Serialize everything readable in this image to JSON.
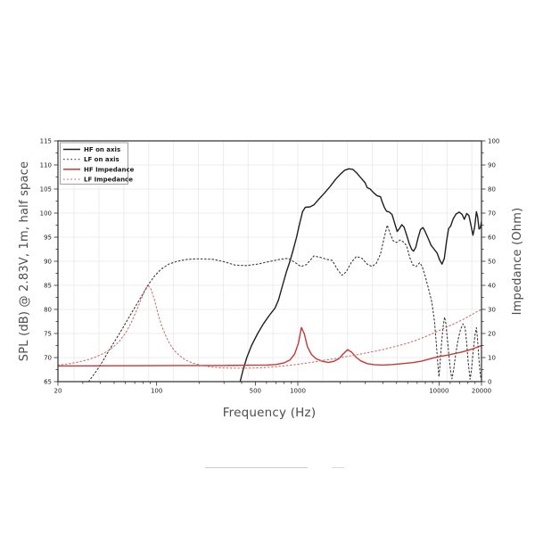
{
  "chart_data": {
    "type": "line",
    "title": "",
    "x_axis": {
      "label": "Frequency (Hz)",
      "scale": "log",
      "min": 20,
      "max": 20000,
      "major_ticks": [
        20,
        100,
        500,
        1000,
        10000,
        20000
      ],
      "major_tick_labels": [
        "20",
        "100",
        "500",
        "1000",
        "10000",
        "20000"
      ],
      "minor_ticks": [
        30,
        40,
        50,
        60,
        70,
        80,
        90,
        200,
        300,
        400,
        600,
        700,
        800,
        900,
        2000,
        3000,
        4000,
        5000,
        6000,
        7000,
        8000,
        9000,
        12000,
        14000,
        16000,
        18000
      ]
    },
    "y_left": {
      "label": "SPL (dB) @ 2.83V, 1m, half space",
      "min": 65,
      "max": 115,
      "major_step": 5,
      "minor_step": 2.5,
      "tick_labels": [
        "65",
        "70",
        "75",
        "80",
        "85",
        "90",
        "95",
        "100",
        "105",
        "110",
        "115"
      ]
    },
    "y_right": {
      "label": "Impedance (Ohm)",
      "min": 0,
      "max": 100,
      "major_step": 10,
      "minor_step": 5,
      "tick_labels": [
        "0",
        "10",
        "20",
        "30",
        "40",
        "50",
        "60",
        "70",
        "80",
        "90",
        "100"
      ]
    },
    "grid": {
      "color": "#ececec",
      "vertical_anchor": 1000,
      "vertical_ratio": 1.5,
      "horizontal_step": 5
    },
    "frame_color": "#2b2b2b",
    "legend": {
      "position": "top-left",
      "entries": [
        "HF on axis",
        "LF on axis",
        "HF Impedance",
        "LF Impedance"
      ]
    },
    "series": [
      {
        "id": "hf-on-axis",
        "name": "HF on axis",
        "axis": "left",
        "unit": "dB SPL",
        "style": "solid",
        "color": "#1f1f1f",
        "width": 1.4,
        "points": [
          [
            390,
            65
          ],
          [
            410,
            67.5
          ],
          [
            435,
            70
          ],
          [
            470,
            72.5
          ],
          [
            520,
            75
          ],
          [
            570,
            77
          ],
          [
            630,
            78.8
          ],
          [
            690,
            80.3
          ],
          [
            730,
            82
          ],
          [
            780,
            85
          ],
          [
            830,
            87.8
          ],
          [
            880,
            90
          ],
          [
            930,
            92.5
          ],
          [
            980,
            95
          ],
          [
            1030,
            97.8
          ],
          [
            1080,
            100.3
          ],
          [
            1130,
            101.2
          ],
          [
            1220,
            101.3
          ],
          [
            1300,
            101.7
          ],
          [
            1400,
            102.8
          ],
          [
            1550,
            104.2
          ],
          [
            1700,
            105.6
          ],
          [
            1850,
            107
          ],
          [
            2000,
            108.1
          ],
          [
            2150,
            108.9
          ],
          [
            2300,
            109.2
          ],
          [
            2450,
            109.1
          ],
          [
            2600,
            108.4
          ],
          [
            2800,
            107.3
          ],
          [
            3000,
            106.3
          ],
          [
            3100,
            105.3
          ],
          [
            3250,
            105
          ],
          [
            3450,
            104.2
          ],
          [
            3650,
            103.6
          ],
          [
            3850,
            103.4
          ],
          [
            3950,
            102.4
          ],
          [
            4100,
            101.2
          ],
          [
            4250,
            100.4
          ],
          [
            4450,
            100.2
          ],
          [
            4650,
            99.7
          ],
          [
            4850,
            97.9
          ],
          [
            5050,
            96.2
          ],
          [
            5250,
            96.8
          ],
          [
            5450,
            97.6
          ],
          [
            5650,
            97.1
          ],
          [
            5900,
            95.4
          ],
          [
            6150,
            93.7
          ],
          [
            6400,
            92.5
          ],
          [
            6600,
            92.1
          ],
          [
            6850,
            92.9
          ],
          [
            7100,
            94.8
          ],
          [
            7400,
            96.6
          ],
          [
            7700,
            97
          ],
          [
            8000,
            96.1
          ],
          [
            8400,
            94.7
          ],
          [
            8800,
            93.3
          ],
          [
            9300,
            92.4
          ],
          [
            9700,
            91.7
          ],
          [
            10100,
            90.3
          ],
          [
            10500,
            89.4
          ],
          [
            10900,
            90.6
          ],
          [
            11300,
            94
          ],
          [
            11700,
            96.8
          ],
          [
            12100,
            97.3
          ],
          [
            12600,
            98.8
          ],
          [
            13200,
            99.8
          ],
          [
            13900,
            100.2
          ],
          [
            14600,
            99.7
          ],
          [
            15100,
            98.7
          ],
          [
            15700,
            99.9
          ],
          [
            16300,
            99.5
          ],
          [
            16900,
            97.3
          ],
          [
            17400,
            95.4
          ],
          [
            17900,
            97.2
          ],
          [
            18400,
            100.3
          ],
          [
            18800,
            99.2
          ],
          [
            19200,
            96.7
          ],
          [
            19600,
            96.9
          ],
          [
            20000,
            98.2
          ]
        ]
      },
      {
        "id": "lf-on-axis",
        "name": "LF on axis",
        "axis": "left",
        "unit": "dB SPL",
        "style": "dotted",
        "color": "#3a3a3a",
        "width": 1.1,
        "points": [
          [
            33,
            65
          ],
          [
            37,
            67
          ],
          [
            41,
            69
          ],
          [
            46,
            71.5
          ],
          [
            52,
            74
          ],
          [
            58,
            76.3
          ],
          [
            65,
            78.8
          ],
          [
            72,
            81
          ],
          [
            80,
            83.2
          ],
          [
            88,
            85.3
          ],
          [
            97,
            87
          ],
          [
            108,
            88.4
          ],
          [
            122,
            89.4
          ],
          [
            140,
            90
          ],
          [
            165,
            90.4
          ],
          [
            200,
            90.5
          ],
          [
            250,
            90.4
          ],
          [
            300,
            89.9
          ],
          [
            360,
            89.2
          ],
          [
            430,
            89.1
          ],
          [
            520,
            89.4
          ],
          [
            620,
            89.9
          ],
          [
            750,
            90.4
          ],
          [
            850,
            90.6
          ],
          [
            950,
            89.8
          ],
          [
            1050,
            88.9
          ],
          [
            1150,
            89.3
          ],
          [
            1300,
            91.1
          ],
          [
            1450,
            90.8
          ],
          [
            1600,
            90.4
          ],
          [
            1750,
            90.2
          ],
          [
            1900,
            88.4
          ],
          [
            2050,
            87.1
          ],
          [
            2200,
            87.8
          ],
          [
            2400,
            89.8
          ],
          [
            2600,
            91
          ],
          [
            2850,
            90.6
          ],
          [
            3100,
            89.4
          ],
          [
            3350,
            88.9
          ],
          [
            3600,
            89.6
          ],
          [
            3850,
            91.5
          ],
          [
            4100,
            95
          ],
          [
            4300,
            97.5
          ],
          [
            4500,
            95.8
          ],
          [
            4750,
            94.2
          ],
          [
            5000,
            93.9
          ],
          [
            5300,
            94.4
          ],
          [
            5600,
            94
          ],
          [
            5900,
            93.2
          ],
          [
            6200,
            90.8
          ],
          [
            6500,
            89.3
          ],
          [
            6900,
            88.9
          ],
          [
            7300,
            89.7
          ],
          [
            7600,
            88.9
          ],
          [
            8000,
            86.8
          ],
          [
            8400,
            84.5
          ],
          [
            8900,
            81.5
          ],
          [
            9300,
            77.5
          ],
          [
            9600,
            72.5
          ],
          [
            9850,
            68
          ],
          [
            10000,
            66
          ],
          [
            10150,
            68.5
          ],
          [
            10400,
            72.5
          ],
          [
            10700,
            76.5
          ],
          [
            10950,
            78.4
          ],
          [
            11200,
            77
          ],
          [
            11500,
            73.5
          ],
          [
            11800,
            70
          ],
          [
            12100,
            67
          ],
          [
            12350,
            65.6
          ],
          [
            12700,
            67.5
          ],
          [
            13100,
            70.5
          ],
          [
            13600,
            73.5
          ],
          [
            14200,
            75.8
          ],
          [
            14800,
            77
          ],
          [
            15300,
            76.2
          ],
          [
            15700,
            73
          ],
          [
            16100,
            69
          ],
          [
            16600,
            65.5
          ],
          [
            17000,
            67.5
          ],
          [
            17500,
            71.5
          ],
          [
            18000,
            74.8
          ],
          [
            18400,
            76.2
          ],
          [
            18800,
            73.5
          ],
          [
            19200,
            69.5
          ],
          [
            19600,
            66.5
          ],
          [
            20000,
            65.3
          ]
        ]
      },
      {
        "id": "hf-impedance",
        "name": "HF Impedance",
        "axis": "right",
        "unit": "Ohm",
        "style": "solid",
        "color": "#c43838",
        "width": 1.4,
        "points": [
          [
            20,
            6.5
          ],
          [
            60,
            6.6
          ],
          [
            150,
            6.7
          ],
          [
            300,
            6.7
          ],
          [
            450,
            6.8
          ],
          [
            600,
            6.9
          ],
          [
            700,
            7.1
          ],
          [
            800,
            7.8
          ],
          [
            880,
            9
          ],
          [
            950,
            11.5
          ],
          [
            1010,
            16
          ],
          [
            1060,
            22.5
          ],
          [
            1110,
            20
          ],
          [
            1170,
            14.5
          ],
          [
            1250,
            11.3
          ],
          [
            1350,
            9.5
          ],
          [
            1500,
            8.4
          ],
          [
            1650,
            8
          ],
          [
            1800,
            8.4
          ],
          [
            1950,
            9.5
          ],
          [
            2100,
            11.5
          ],
          [
            2250,
            13.3
          ],
          [
            2400,
            12.3
          ],
          [
            2600,
            10
          ],
          [
            2800,
            8.6
          ],
          [
            3100,
            7.5
          ],
          [
            3500,
            7
          ],
          [
            4000,
            6.9
          ],
          [
            4700,
            7.1
          ],
          [
            5500,
            7.5
          ],
          [
            6500,
            7.9
          ],
          [
            7500,
            8.5
          ],
          [
            8800,
            9.6
          ],
          [
            10000,
            10.4
          ],
          [
            11500,
            11
          ],
          [
            13000,
            11.7
          ],
          [
            14500,
            12.3
          ],
          [
            16000,
            13
          ],
          [
            17500,
            13.7
          ],
          [
            19000,
            14.5
          ],
          [
            20000,
            15
          ]
        ]
      },
      {
        "id": "lf-impedance",
        "name": "LF Impedance",
        "axis": "right",
        "unit": "Ohm",
        "style": "dotted",
        "color": "#c96b6b",
        "width": 1.05,
        "points": [
          [
            20,
            6.9
          ],
          [
            24,
            7.4
          ],
          [
            28,
            8.2
          ],
          [
            33,
            9.2
          ],
          [
            38,
            10.5
          ],
          [
            43,
            12
          ],
          [
            48,
            13.8
          ],
          [
            54,
            16.5
          ],
          [
            60,
            20
          ],
          [
            66,
            24.5
          ],
          [
            72,
            29.5
          ],
          [
            78,
            34.5
          ],
          [
            83,
            38.5
          ],
          [
            87,
            40
          ],
          [
            91,
            38.5
          ],
          [
            96,
            34.5
          ],
          [
            102,
            28.5
          ],
          [
            108,
            23.5
          ],
          [
            115,
            19.5
          ],
          [
            123,
            16
          ],
          [
            133,
            13
          ],
          [
            145,
            10.8
          ],
          [
            160,
            9
          ],
          [
            180,
            7.7
          ],
          [
            205,
            6.8
          ],
          [
            240,
            6.1
          ],
          [
            290,
            5.7
          ],
          [
            360,
            5.6
          ],
          [
            450,
            5.6
          ],
          [
            560,
            5.8
          ],
          [
            700,
            6.2
          ],
          [
            850,
            6.7
          ],
          [
            1000,
            7.2
          ],
          [
            1250,
            8
          ],
          [
            1500,
            8.8
          ],
          [
            1800,
            9.5
          ],
          [
            2200,
            10.4
          ],
          [
            2700,
            11.3
          ],
          [
            3300,
            12.3
          ],
          [
            4000,
            13.3
          ],
          [
            5000,
            14.7
          ],
          [
            6000,
            16
          ],
          [
            7000,
            17.3
          ],
          [
            8000,
            18.7
          ],
          [
            9200,
            20.2
          ],
          [
            10500,
            21.8
          ],
          [
            12000,
            23.3
          ],
          [
            13500,
            24.7
          ],
          [
            15000,
            26
          ],
          [
            16800,
            27.6
          ],
          [
            18500,
            29
          ],
          [
            20000,
            30
          ]
        ]
      }
    ]
  }
}
